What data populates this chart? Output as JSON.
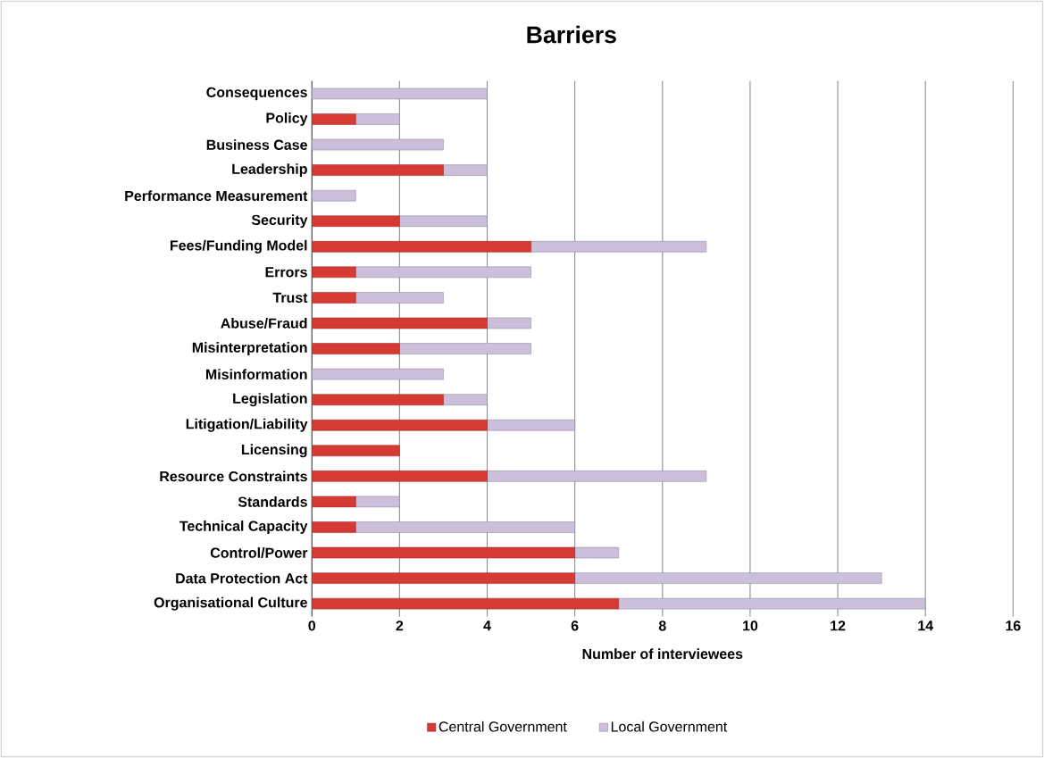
{
  "chart_data": {
    "type": "bar",
    "title": "Barriers",
    "xlabel": "Number of interviewees",
    "orientation": "horizontal",
    "stacked": true,
    "categories": [
      "Consequences",
      "Policy",
      "Business Case",
      "Leadership",
      "Performance Measurement",
      "Security",
      "Fees/Funding Model",
      "Errors",
      "Trust",
      "Abuse/Fraud",
      "Misinterpretation",
      "Misinformation",
      "Legislation",
      "Litigation/Liability",
      "Licensing",
      "Resource Constraints",
      "Standards",
      "Technical Capacity",
      "Control/Power",
      "Data Protection Act",
      "Organisational Culture"
    ],
    "series": [
      {
        "name": "Central Government",
        "color": "#d63a34",
        "values": [
          0,
          1,
          0,
          3,
          0,
          2,
          5,
          1,
          1,
          4,
          2,
          0,
          3,
          4,
          2,
          4,
          1,
          1,
          6,
          6,
          7
        ]
      },
      {
        "name": "Local Government",
        "color": "#cbbfdc",
        "values": [
          4,
          1,
          3,
          1,
          1,
          2,
          4,
          4,
          2,
          1,
          3,
          3,
          1,
          2,
          0,
          5,
          1,
          5,
          1,
          7,
          7
        ]
      }
    ],
    "xlim": [
      0,
      16
    ],
    "xticks": [
      0,
      2,
      4,
      6,
      8,
      10,
      12,
      14,
      16
    ],
    "grid": "x",
    "legend": "bottom"
  }
}
